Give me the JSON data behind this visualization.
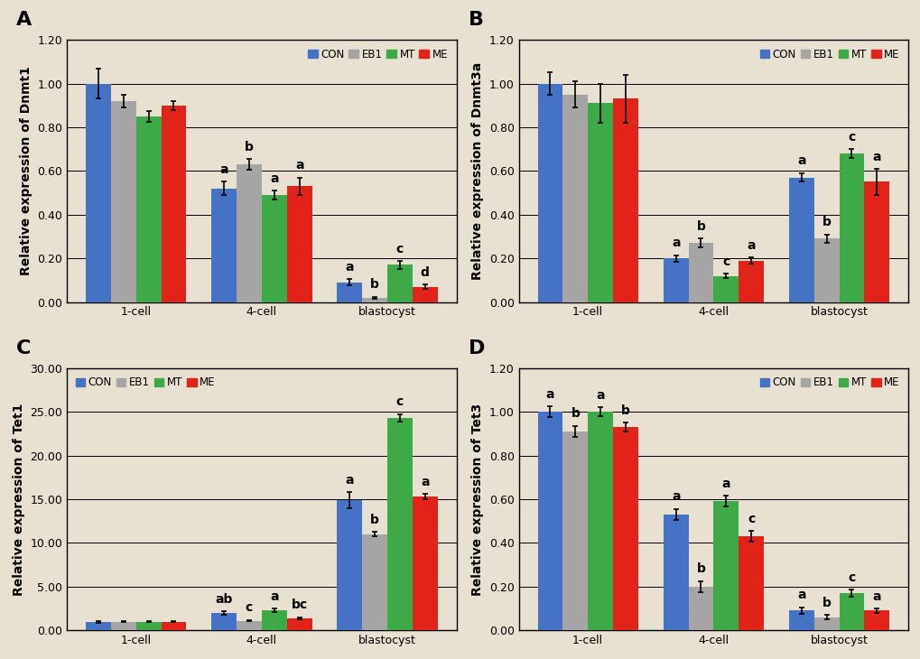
{
  "panels": [
    {
      "label": "A",
      "ylabel": "Relative expression of Dnmt1",
      "ylim": [
        0,
        1.2
      ],
      "yticks": [
        0.0,
        0.2,
        0.4,
        0.6,
        0.8,
        1.0,
        1.2
      ],
      "groups": [
        "1-cell",
        "4-cell",
        "blastocyst"
      ],
      "values": {
        "CON": [
          1.0,
          0.52,
          0.09
        ],
        "EB1": [
          0.92,
          0.63,
          0.02
        ],
        "MT": [
          0.85,
          0.49,
          0.17
        ],
        "ME": [
          0.9,
          0.53,
          0.07
        ]
      },
      "errors": {
        "CON": [
          0.07,
          0.03,
          0.015
        ],
        "EB1": [
          0.03,
          0.025,
          0.005
        ],
        "MT": [
          0.025,
          0.02,
          0.018
        ],
        "ME": [
          0.02,
          0.04,
          0.01
        ]
      },
      "letters": {
        "CON": [
          "",
          "a",
          "a"
        ],
        "EB1": [
          "",
          "b",
          "b"
        ],
        "MT": [
          "",
          "a",
          "c"
        ],
        "ME": [
          "",
          "a",
          "d"
        ]
      },
      "legend_pos": "upper right"
    },
    {
      "label": "B",
      "ylabel": "Relative expression of Dnmt3a",
      "ylim": [
        0,
        1.2
      ],
      "yticks": [
        0.0,
        0.2,
        0.4,
        0.6,
        0.8,
        1.0,
        1.2
      ],
      "groups": [
        "1-cell",
        "4-cell",
        "blastocyst"
      ],
      "values": {
        "CON": [
          1.0,
          0.2,
          0.57
        ],
        "EB1": [
          0.95,
          0.27,
          0.29
        ],
        "MT": [
          0.91,
          0.12,
          0.68
        ],
        "ME": [
          0.93,
          0.19,
          0.55
        ]
      },
      "errors": {
        "CON": [
          0.05,
          0.015,
          0.02
        ],
        "EB1": [
          0.06,
          0.02,
          0.02
        ],
        "MT": [
          0.09,
          0.01,
          0.02
        ],
        "ME": [
          0.11,
          0.015,
          0.06
        ]
      },
      "letters": {
        "CON": [
          "",
          "a",
          "a"
        ],
        "EB1": [
          "",
          "b",
          "b"
        ],
        "MT": [
          "",
          "c",
          "c"
        ],
        "ME": [
          "",
          "a",
          "a"
        ]
      },
      "legend_pos": "upper right"
    },
    {
      "label": "C",
      "ylabel": "Relative expression of Tet1",
      "ylim": [
        0,
        30.0
      ],
      "yticks": [
        0.0,
        5.0,
        10.0,
        15.0,
        20.0,
        25.0,
        30.0
      ],
      "groups": [
        "1-cell",
        "4-cell",
        "blastocyst"
      ],
      "values": {
        "CON": [
          1.0,
          2.0,
          14.9
        ],
        "EB1": [
          1.0,
          1.1,
          11.0
        ],
        "MT": [
          1.0,
          2.3,
          24.3
        ],
        "ME": [
          1.0,
          1.4,
          15.3
        ]
      },
      "errors": {
        "CON": [
          0.1,
          0.18,
          0.9
        ],
        "EB1": [
          0.08,
          0.08,
          0.28
        ],
        "MT": [
          0.07,
          0.18,
          0.45
        ],
        "ME": [
          0.07,
          0.1,
          0.3
        ]
      },
      "letters": {
        "CON": [
          "",
          "ab",
          "a"
        ],
        "EB1": [
          "",
          "c",
          "b"
        ],
        "MT": [
          "",
          "a",
          "c"
        ],
        "ME": [
          "",
          "bc",
          "a"
        ]
      },
      "legend_pos": "upper left"
    },
    {
      "label": "D",
      "ylabel": "Relative expression of Tet3",
      "ylim": [
        0,
        1.2
      ],
      "yticks": [
        0.0,
        0.2,
        0.4,
        0.6,
        0.8,
        1.0,
        1.2
      ],
      "groups": [
        "1-cell",
        "4-cell",
        "blastocyst"
      ],
      "values": {
        "CON": [
          1.0,
          0.53,
          0.09
        ],
        "EB1": [
          0.91,
          0.2,
          0.06
        ],
        "MT": [
          1.0,
          0.59,
          0.17
        ],
        "ME": [
          0.93,
          0.43,
          0.09
        ]
      },
      "errors": {
        "CON": [
          0.025,
          0.025,
          0.015
        ],
        "EB1": [
          0.025,
          0.025,
          0.01
        ],
        "MT": [
          0.02,
          0.025,
          0.015
        ],
        "ME": [
          0.02,
          0.025,
          0.01
        ]
      },
      "letters": {
        "CON": [
          "a",
          "a",
          "a"
        ],
        "EB1": [
          "b",
          "b",
          "b"
        ],
        "MT": [
          "a",
          "a",
          "c"
        ],
        "ME": [
          "b",
          "c",
          "a"
        ]
      },
      "legend_pos": "upper right"
    }
  ],
  "bar_colors": {
    "CON": "#4472C4",
    "EB1": "#A5A5A5",
    "MT": "#3DAA47",
    "ME": "#E2231A"
  },
  "bar_order": [
    "CON",
    "EB1",
    "MT",
    "ME"
  ],
  "bar_width": 0.2,
  "background_color": "#E8E0D0",
  "plot_bg_color": "#E8E0D0",
  "grid_color": "#000000",
  "font_size_ylabel": 10,
  "font_size_tick": 9,
  "font_size_letter": 10,
  "font_size_panel": 16
}
